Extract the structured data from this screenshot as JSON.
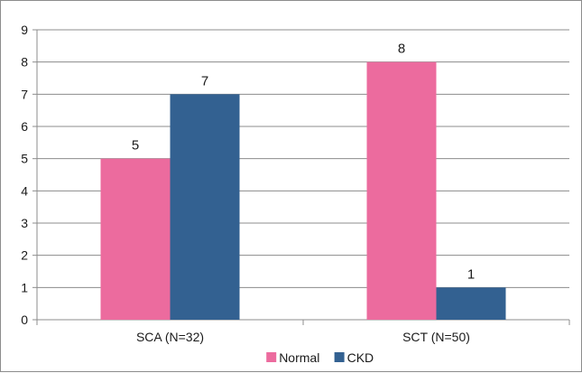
{
  "chart_data": {
    "type": "bar",
    "categories": [
      "SCA (N=32)",
      "SCT (N=50)"
    ],
    "series": [
      {
        "name": "Normal",
        "values": [
          5,
          8
        ],
        "color": "#ec6b9e"
      },
      {
        "name": "CKD",
        "values": [
          7,
          1
        ],
        "color": "#336191"
      }
    ],
    "y_ticks": [
      "0",
      "1",
      "2",
      "3",
      "4",
      "5",
      "6",
      "7",
      "8",
      "9"
    ],
    "ylim": [
      0,
      9
    ],
    "grid": true,
    "legend_position": "bottom",
    "data_labels": true,
    "title": "",
    "xlabel": "",
    "ylabel": ""
  }
}
